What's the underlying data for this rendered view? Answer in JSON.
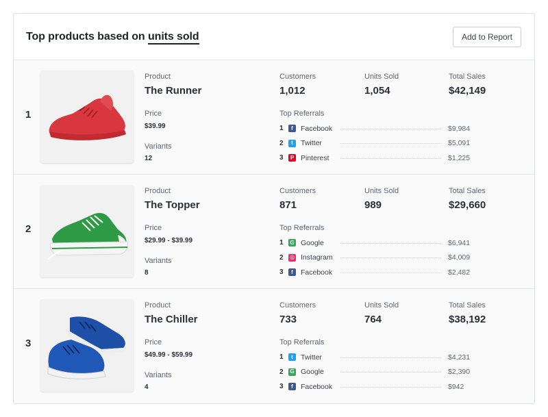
{
  "header": {
    "title_prefix": "Top products based on",
    "title_link": "units sold",
    "add_button": "Add to Report"
  },
  "labels": {
    "product": "Product",
    "price": "Price",
    "variants": "Variants",
    "customers": "Customers",
    "units_sold": "Units Sold",
    "total_sales": "Total Sales",
    "top_referrals": "Top Referrals"
  },
  "products": [
    {
      "rank": "1",
      "name": "The Runner",
      "price": "$39.99",
      "variants": "12",
      "customers": "1,012",
      "units_sold": "1,054",
      "total_sales": "$42,149",
      "image": "red-sneaker-image",
      "referrals": [
        {
          "num": "1",
          "icon": "facebook-icon",
          "name": "Facebook",
          "value": "$9,984",
          "color": "#3b5998"
        },
        {
          "num": "2",
          "icon": "twitter-icon",
          "name": "Twitter",
          "value": "$5,091",
          "color": "#1da1f2"
        },
        {
          "num": "3",
          "icon": "pinterest-icon",
          "name": "Pinterest",
          "value": "$1,225",
          "color": "#e60023"
        }
      ]
    },
    {
      "rank": "2",
      "name": "The Topper",
      "price": "$29.99 - $39.99",
      "variants": "8",
      "customers": "871",
      "units_sold": "989",
      "total_sales": "$29,660",
      "image": "green-sneaker-image",
      "referrals": [
        {
          "num": "1",
          "icon": "google-icon",
          "name": "Google",
          "value": "$6,941",
          "color": "#34a853"
        },
        {
          "num": "2",
          "icon": "instagram-icon",
          "name": "Instagram",
          "value": "$4,009",
          "color": "#e1306c"
        },
        {
          "num": "3",
          "icon": "facebook-icon",
          "name": "Facebook",
          "value": "$2,482",
          "color": "#3b5998"
        }
      ]
    },
    {
      "rank": "3",
      "name": "The Chiller",
      "price": "$49.99 - $59.99",
      "variants": "4",
      "customers": "733",
      "units_sold": "764",
      "total_sales": "$38,192",
      "image": "blue-sneaker-image",
      "referrals": [
        {
          "num": "1",
          "icon": "twitter-icon",
          "name": "Twitter",
          "value": "$4,231",
          "color": "#1da1f2"
        },
        {
          "num": "2",
          "icon": "google-icon",
          "name": "Google",
          "value": "$2,390",
          "color": "#34a853"
        },
        {
          "num": "3",
          "icon": "facebook-icon",
          "name": "Facebook",
          "value": "$942",
          "color": "#3b5998"
        }
      ]
    }
  ]
}
